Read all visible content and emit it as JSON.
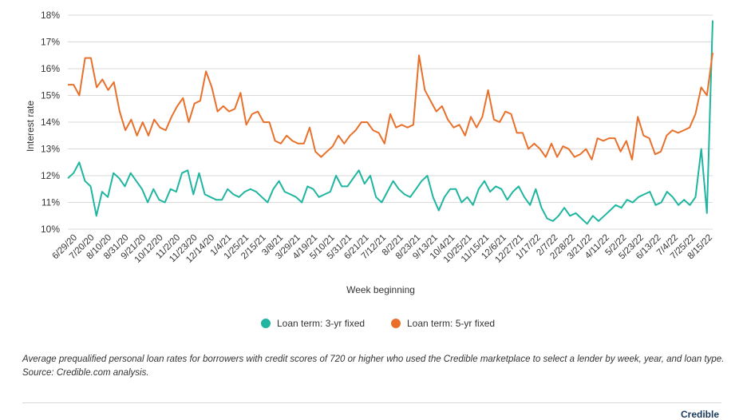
{
  "chart_data": {
    "type": "line",
    "title": "",
    "ylabel": "Interest rate",
    "xlabel": "Week beginning",
    "ylim": [
      10,
      18
    ],
    "yticks": [
      "10%",
      "11%",
      "12%",
      "13%",
      "14%",
      "15%",
      "16%",
      "17%",
      "18%"
    ],
    "x_tick_labels": [
      "6/29/20",
      "7/20/20",
      "8/10/20",
      "8/31/20",
      "9/21/20",
      "10/12/20",
      "11/2/20",
      "11/23/20",
      "12/14/20",
      "1/4/21",
      "1/25/21",
      "2/15/21",
      "3/8/21",
      "3/29/21",
      "4/19/21",
      "5/10/21",
      "5/31/21",
      "6/21/21",
      "7/12/21",
      "8/2/21",
      "8/23/21",
      "9/13/21",
      "10/4/21",
      "10/25/21",
      "11/15/21",
      "12/6/21",
      "12/27/21",
      "1/17/22",
      "2/7/22",
      "2/28/22",
      "3/21/22",
      "4/11/22",
      "5/2/22",
      "5/23/22",
      "6/13/22",
      "7/4/22",
      "7/25/22",
      "8/15/22"
    ],
    "grid": true,
    "legend_position": "bottom",
    "series": [
      {
        "name": "Loan term: 3-yr fixed",
        "color": "#1fb5a0",
        "values": [
          11.9,
          12.1,
          12.5,
          11.8,
          11.6,
          10.5,
          11.4,
          11.2,
          12.1,
          11.9,
          11.6,
          12.1,
          11.8,
          11.5,
          11.0,
          11.5,
          11.1,
          11.0,
          11.5,
          11.4,
          12.1,
          12.2,
          11.3,
          12.1,
          11.3,
          11.2,
          11.1,
          11.1,
          11.5,
          11.3,
          11.2,
          11.4,
          11.5,
          11.4,
          11.2,
          11.0,
          11.5,
          11.8,
          11.4,
          11.3,
          11.2,
          11.0,
          11.6,
          11.5,
          11.2,
          11.3,
          11.4,
          12.0,
          11.6,
          11.6,
          11.9,
          12.2,
          11.7,
          12.0,
          11.2,
          11.0,
          11.4,
          11.8,
          11.5,
          11.3,
          11.2,
          11.5,
          11.8,
          12.0,
          11.2,
          10.7,
          11.2,
          11.5,
          11.5,
          11.0,
          11.2,
          10.9,
          11.5,
          11.8,
          11.4,
          11.6,
          11.5,
          11.1,
          11.4,
          11.6,
          11.2,
          10.9,
          11.5,
          10.8,
          10.4,
          10.3,
          10.5,
          10.8,
          10.5,
          10.6,
          10.4,
          10.2,
          10.5,
          10.3,
          10.5,
          10.7,
          10.9,
          10.8,
          11.1,
          11.0,
          11.2,
          11.3,
          11.4,
          10.9,
          11.0,
          11.4,
          11.2,
          10.9,
          11.1,
          10.9,
          11.2,
          13.0,
          10.6,
          17.8
        ]
      },
      {
        "name": "Loan term: 5-yr fixed",
        "color": "#e8702a",
        "values": [
          15.4,
          15.4,
          15.0,
          16.4,
          16.4,
          15.3,
          15.6,
          15.2,
          15.5,
          14.4,
          13.7,
          14.1,
          13.5,
          14.0,
          13.5,
          14.1,
          13.8,
          13.7,
          14.2,
          14.6,
          14.9,
          14.0,
          14.7,
          14.8,
          15.9,
          15.3,
          14.4,
          14.6,
          14.4,
          14.5,
          15.1,
          13.9,
          14.3,
          14.4,
          14.0,
          14.0,
          13.3,
          13.2,
          13.5,
          13.3,
          13.2,
          13.2,
          13.8,
          12.9,
          12.7,
          12.9,
          13.1,
          13.5,
          13.2,
          13.5,
          13.7,
          14.0,
          14.0,
          13.7,
          13.6,
          13.2,
          14.3,
          13.8,
          13.9,
          13.8,
          13.9,
          16.5,
          15.2,
          14.8,
          14.4,
          14.6,
          14.1,
          13.8,
          13.9,
          13.5,
          14.2,
          13.8,
          14.2,
          15.2,
          14.1,
          14.0,
          14.4,
          14.3,
          13.6,
          13.6,
          13.0,
          13.2,
          13.0,
          12.7,
          13.2,
          12.7,
          13.1,
          13.0,
          12.7,
          12.8,
          13.0,
          12.6,
          13.4,
          13.3,
          13.4,
          13.4,
          12.9,
          13.3,
          12.6,
          14.2,
          13.5,
          13.4,
          12.8,
          12.9,
          13.5,
          13.7,
          13.6,
          13.7,
          13.8,
          14.3,
          15.3,
          15.0,
          16.6
        ]
      }
    ]
  },
  "caption": "Average prequalified personal loan rates for borrowers with credit scores of 720 or higher who used the Credible marketplace to select a lender by week, year, and loan type. Source: Credible.com analysis.",
  "logo": "Credible"
}
